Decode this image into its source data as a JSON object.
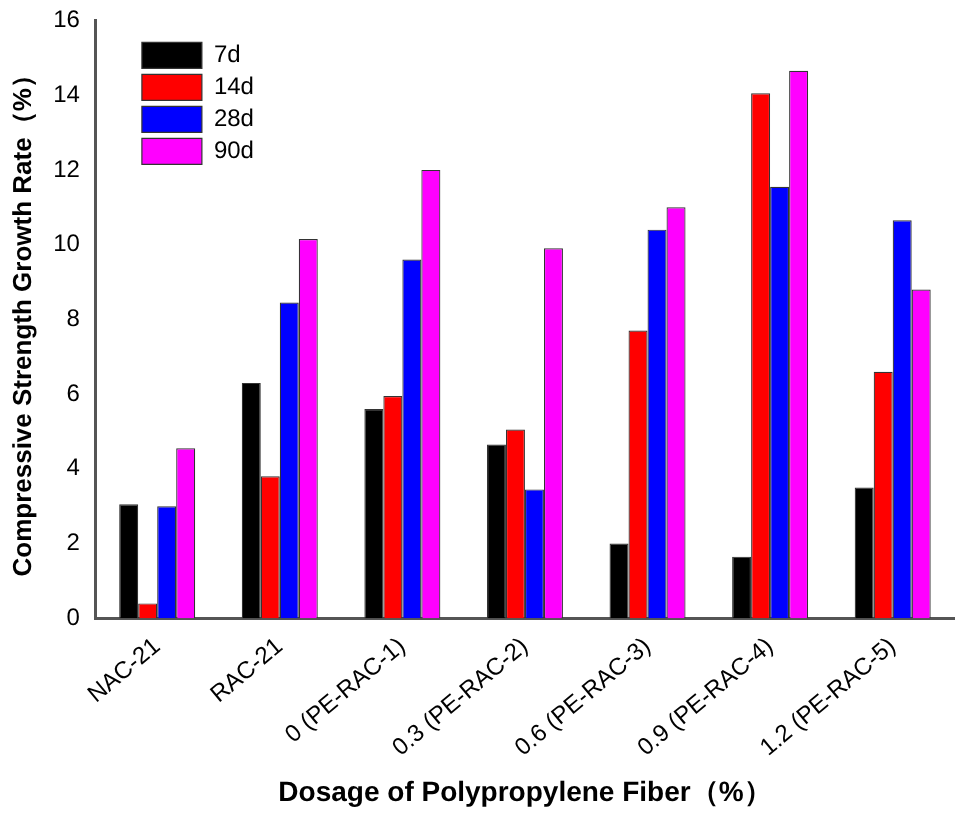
{
  "chart_data": {
    "type": "bar",
    "xlabel": "Dosage of Polypropylene Fiber（%）",
    "ylabel": "Compressive Strength Growth Rate（%）",
    "categories": [
      "NAC-21",
      "RAC-21",
      "0 (PE-RAC-1)",
      "0.3 (PE-RAC-2)",
      "0.6 (PE-RAC-3)",
      "0.9 (PE-RAC-4)",
      "1.2 (PE-RAC-5)"
    ],
    "series": [
      {
        "name": "7d",
        "color": "#000000",
        "values": [
          3.05,
          6.3,
          5.6,
          4.65,
          2.0,
          1.65,
          3.5
        ]
      },
      {
        "name": "14d",
        "color": "#ff0000",
        "values": [
          0.4,
          3.8,
          5.95,
          5.05,
          7.7,
          14.05,
          6.6
        ]
      },
      {
        "name": "28d",
        "color": "#0000ff",
        "values": [
          3.0,
          8.45,
          9.6,
          3.45,
          10.4,
          11.55,
          10.65
        ]
      },
      {
        "name": "90d",
        "color": "#ff00ff",
        "values": [
          4.55,
          10.15,
          12.0,
          9.9,
          11.0,
          14.65,
          8.8
        ]
      }
    ],
    "ylim": [
      0,
      16
    ],
    "yticks": [
      0,
      2,
      4,
      6,
      8,
      10,
      12,
      14,
      16
    ],
    "grid": false,
    "legend": "top left"
  }
}
